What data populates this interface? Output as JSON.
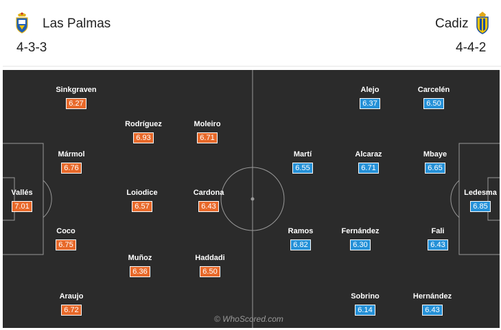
{
  "home": {
    "name": "Las Palmas",
    "formation": "4-3-3",
    "crest_icon": "las-palmas-crest-icon",
    "rating_color": "#e8692a",
    "players": [
      {
        "name": "Vallés",
        "rating": "7.01"
      },
      {
        "name": "Mármol",
        "rating": "6.76"
      },
      {
        "name": "Sinkgraven",
        "rating": "6.27"
      },
      {
        "name": "Coco",
        "rating": "6.75"
      },
      {
        "name": "Araujo",
        "rating": "6.72"
      },
      {
        "name": "Rodríguez",
        "rating": "6.93"
      },
      {
        "name": "Loiodice",
        "rating": "6.57"
      },
      {
        "name": "Muñoz",
        "rating": "6.36"
      },
      {
        "name": "Moleiro",
        "rating": "6.71"
      },
      {
        "name": "Cardona",
        "rating": "6.43"
      },
      {
        "name": "Haddadi",
        "rating": "6.50"
      }
    ]
  },
  "away": {
    "name": "Cadiz",
    "formation": "4-4-2",
    "crest_icon": "cadiz-crest-icon",
    "rating_color": "#2591d8",
    "players": [
      {
        "name": "Ledesma",
        "rating": "6.85"
      },
      {
        "name": "Carcelén",
        "rating": "6.50"
      },
      {
        "name": "Mbaye",
        "rating": "6.65"
      },
      {
        "name": "Fali",
        "rating": "6.43"
      },
      {
        "name": "Hernández",
        "rating": "6.43"
      },
      {
        "name": "Alejo",
        "rating": "6.37"
      },
      {
        "name": "Alcaraz",
        "rating": "6.71"
      },
      {
        "name": "Fernández",
        "rating": "6.30"
      },
      {
        "name": "Sobrino",
        "rating": "6.14"
      },
      {
        "name": "Martí",
        "rating": "6.55"
      },
      {
        "name": "Ramos",
        "rating": "6.82"
      }
    ]
  },
  "watermark": "© WhoScored.com",
  "pitch_color": "#2b2b2b"
}
